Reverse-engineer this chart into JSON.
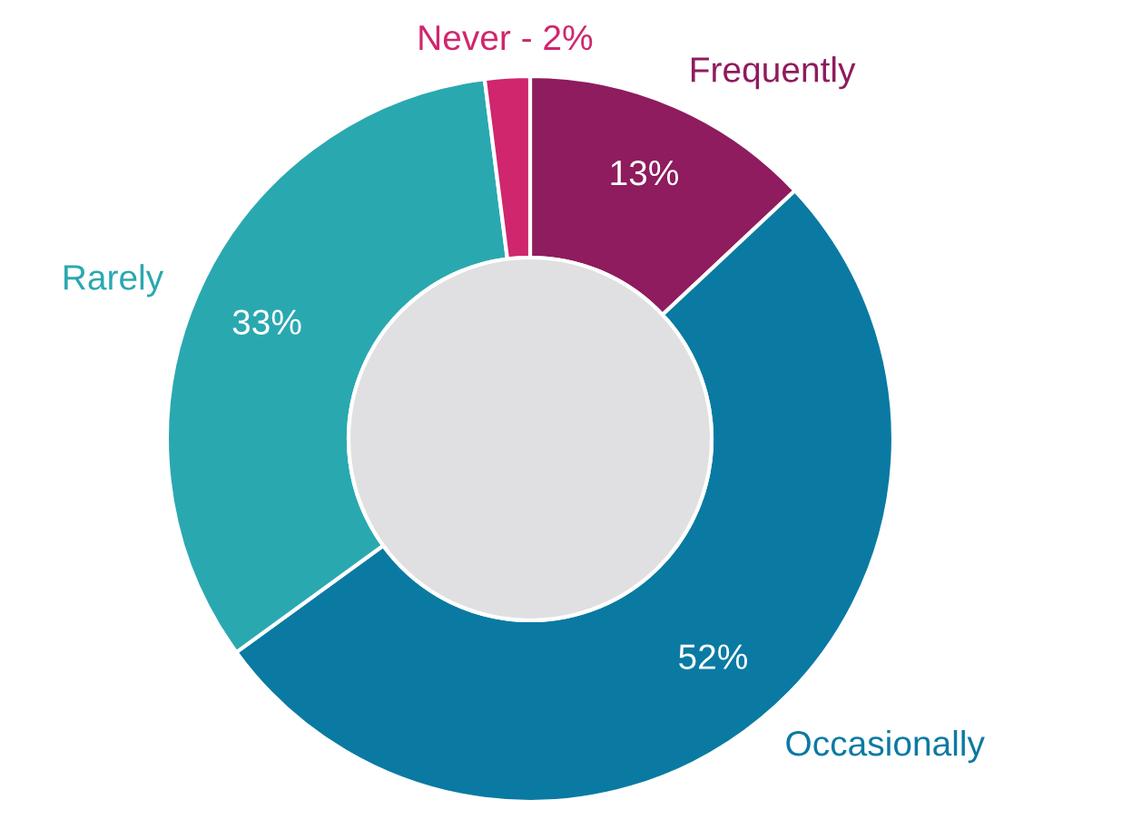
{
  "chart_data": {
    "type": "donut",
    "categories": [
      "Frequently",
      "Occasionally",
      "Rarely",
      "Never - 2%"
    ],
    "values": [
      13,
      52,
      33,
      2
    ],
    "colors": [
      "#8e1c5e",
      "#0a7aa3",
      "#2aa8b0",
      "#d0266e"
    ],
    "value_labels": [
      "13%",
      "52%",
      "33%",
      null
    ],
    "legend": false
  }
}
